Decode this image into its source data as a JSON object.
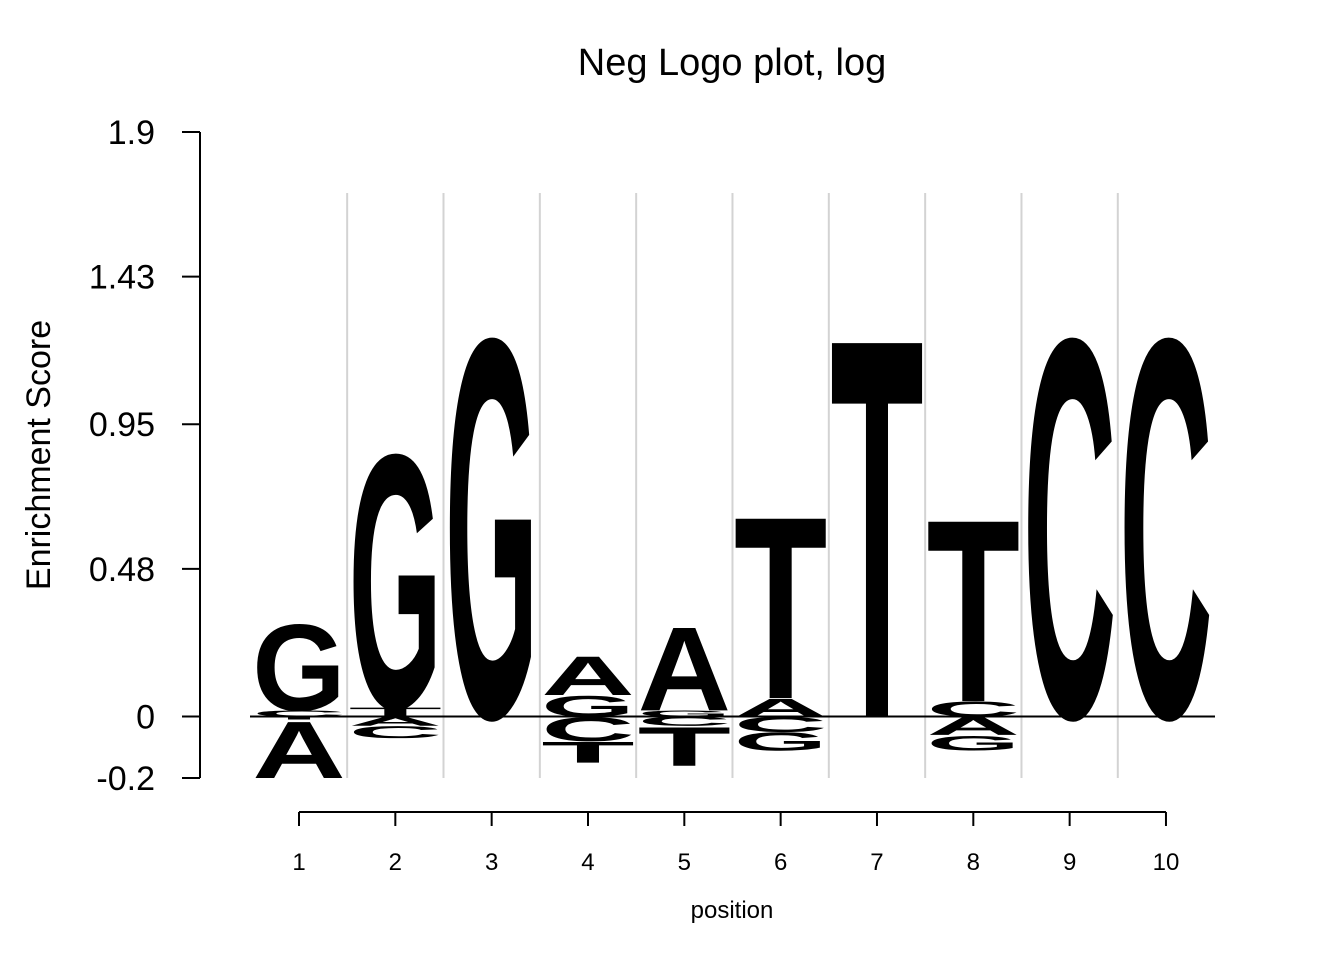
{
  "chart_data": {
    "type": "sequence-logo",
    "title": "Neg Logo plot, log",
    "xlabel": "position",
    "ylabel": "Enrichment Score",
    "ylim": [
      -0.2,
      1.9
    ],
    "yticks": [
      "1.9",
      "1.43",
      "0.95",
      "0.48",
      "0",
      "-0.2"
    ],
    "ytick_values": [
      1.9,
      1.43,
      0.95,
      0.48,
      0,
      -0.2
    ],
    "xticks": [
      "1",
      "2",
      "3",
      "4",
      "5",
      "6",
      "7",
      "8",
      "9",
      "10"
    ],
    "baseline": 0,
    "letter_colors": {
      "A": "#d7191c",
      "C": "#fdae61",
      "G": "#abdda4",
      "T": "#2b83ba"
    },
    "positions": [
      {
        "position": 1,
        "positive": [
          {
            "letter": "C",
            "height": 0.02
          },
          {
            "letter": "G",
            "height": 0.29
          }
        ],
        "negative": [
          {
            "letter": "T",
            "height": 0.01
          },
          {
            "letter": "A",
            "height": 0.19
          }
        ]
      },
      {
        "position": 2,
        "positive": [
          {
            "letter": "T",
            "height": 0.03
          },
          {
            "letter": "G",
            "height": 0.85
          }
        ],
        "negative": [
          {
            "letter": "A",
            "height": 0.03
          },
          {
            "letter": "C",
            "height": 0.04
          }
        ]
      },
      {
        "position": 3,
        "positive": [
          {
            "letter": "G",
            "height": 1.27
          }
        ],
        "negative": []
      },
      {
        "position": 4,
        "positive": [
          {
            "letter": "G",
            "height": 0.07
          },
          {
            "letter": "A",
            "height": 0.13
          }
        ],
        "negative": [
          {
            "letter": "C",
            "height": 0.08
          },
          {
            "letter": "T",
            "height": 0.07
          }
        ]
      },
      {
        "position": 5,
        "positive": [
          {
            "letter": "G",
            "height": 0.02
          },
          {
            "letter": "A",
            "height": 0.28
          }
        ],
        "negative": [
          {
            "letter": "C",
            "height": 0.03
          },
          {
            "letter": "T",
            "height": 0.13
          }
        ]
      },
      {
        "position": 6,
        "positive": [
          {
            "letter": "A",
            "height": 0.06
          },
          {
            "letter": "T",
            "height": 0.61
          }
        ],
        "negative": [
          {
            "letter": "C",
            "height": 0.05
          },
          {
            "letter": "G",
            "height": 0.06
          }
        ]
      },
      {
        "position": 7,
        "positive": [
          {
            "letter": "T",
            "height": 1.27
          }
        ],
        "negative": []
      },
      {
        "position": 8,
        "positive": [
          {
            "letter": "C",
            "height": 0.05
          },
          {
            "letter": "T",
            "height": 0.61
          }
        ],
        "negative": [
          {
            "letter": "A",
            "height": 0.06
          },
          {
            "letter": "G",
            "height": 0.05
          }
        ]
      },
      {
        "position": 9,
        "positive": [
          {
            "letter": "C",
            "height": 1.27
          }
        ],
        "negative": []
      },
      {
        "position": 10,
        "positive": [
          {
            "letter": "C",
            "height": 1.27
          }
        ],
        "negative": []
      }
    ]
  }
}
